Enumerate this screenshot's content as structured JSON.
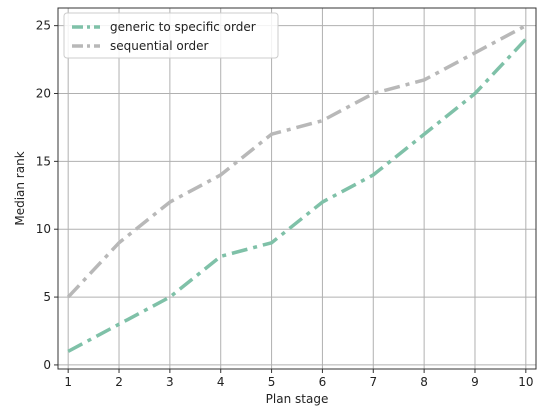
{
  "chart_data": {
    "type": "line",
    "title": "",
    "xlabel": "Plan stage",
    "ylabel": "Median rank",
    "x": [
      1,
      2,
      3,
      4,
      5,
      6,
      7,
      8,
      9,
      10
    ],
    "xlim": [
      0.8,
      10.2
    ],
    "ylim": [
      -0.3,
      26.3
    ],
    "yticks": [
      0,
      5,
      10,
      15,
      20,
      25
    ],
    "grid": true,
    "legend_position": "top-left",
    "series": [
      {
        "name": "generic to specific order",
        "color": "#7fc1a8",
        "linestyle": "dash-dot",
        "values": [
          1,
          3,
          5,
          8,
          9,
          12,
          14,
          17,
          20,
          24
        ]
      },
      {
        "name": "sequential order",
        "color": "#b8b8b8",
        "linestyle": "dash-dot",
        "values": [
          5,
          9,
          12,
          14,
          17,
          18,
          20,
          21,
          23,
          25
        ]
      }
    ]
  }
}
